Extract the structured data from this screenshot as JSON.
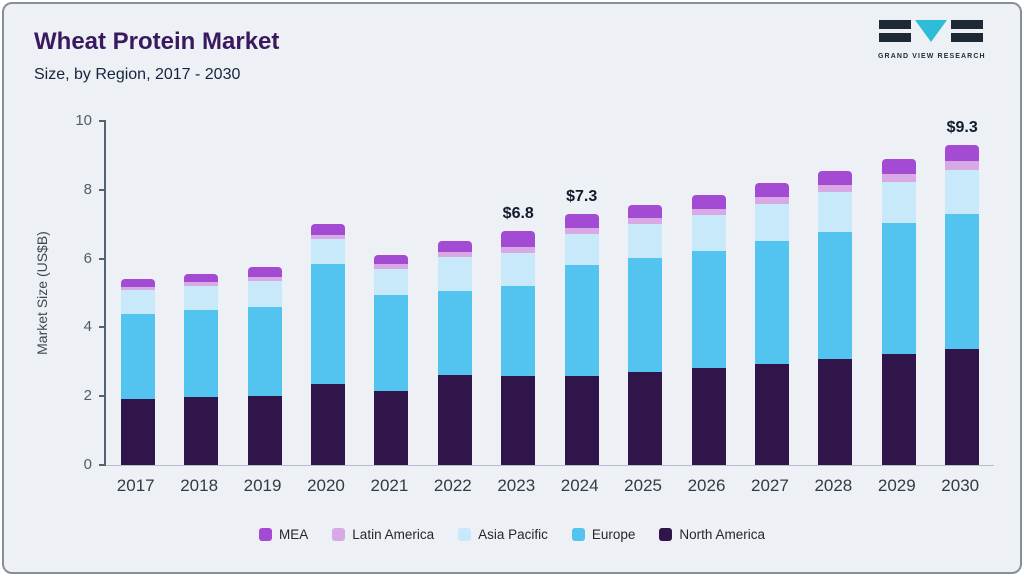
{
  "header": {
    "title": "Wheat Protein Market",
    "subtitle": "Size, by Region, 2017 - 2030"
  },
  "logo": {
    "name": "GRAND VIEW RESEARCH"
  },
  "chart_data": {
    "type": "bar",
    "stacked": true,
    "title": "Wheat Protein Market",
    "subtitle": "Size, by Region, 2017 - 2030",
    "ylabel": "Market Size (US$B)",
    "xlabel": "",
    "ylim": [
      0,
      10
    ],
    "yticks": [
      0,
      2,
      4,
      6,
      8,
      10
    ],
    "grid": false,
    "legend_position": "bottom",
    "categories": [
      "2017",
      "2018",
      "2019",
      "2020",
      "2021",
      "2022",
      "2023",
      "2024",
      "2025",
      "2026",
      "2027",
      "2028",
      "2029",
      "2030"
    ],
    "series": [
      {
        "name": "North America",
        "color": "#2f1549",
        "values": [
          1.92,
          1.97,
          2.02,
          2.35,
          2.15,
          2.62,
          2.6,
          2.58,
          2.7,
          2.83,
          2.95,
          3.08,
          3.22,
          3.38
        ]
      },
      {
        "name": "Europe",
        "color": "#53c4ef",
        "values": [
          2.48,
          2.53,
          2.58,
          3.5,
          2.8,
          2.43,
          2.6,
          3.22,
          3.32,
          3.4,
          3.55,
          3.68,
          3.82,
          3.93
        ]
      },
      {
        "name": "Asia Pacific",
        "color": "#c7e9fa",
        "values": [
          0.68,
          0.7,
          0.75,
          0.71,
          0.75,
          1.0,
          0.95,
          0.93,
          0.98,
          1.04,
          1.1,
          1.17,
          1.19,
          1.28
        ]
      },
      {
        "name": "Latin America",
        "color": "#d9a9e6",
        "values": [
          0.1,
          0.11,
          0.12,
          0.14,
          0.13,
          0.15,
          0.2,
          0.17,
          0.17,
          0.18,
          0.18,
          0.2,
          0.22,
          0.25
        ]
      },
      {
        "name": "MEA",
        "color": "#a44bd3",
        "values": [
          0.22,
          0.24,
          0.28,
          0.3,
          0.27,
          0.3,
          0.45,
          0.4,
          0.38,
          0.4,
          0.42,
          0.42,
          0.45,
          0.46
        ]
      }
    ],
    "totals": [
      5.4,
      5.55,
      5.75,
      7.0,
      6.1,
      6.5,
      6.8,
      7.3,
      7.55,
      7.85,
      8.2,
      8.55,
      8.9,
      9.3
    ],
    "annotations": [
      {
        "category": "2023",
        "label": "$6.8"
      },
      {
        "category": "2024",
        "label": "$7.3"
      },
      {
        "category": "2030",
        "label": "$9.3"
      }
    ]
  }
}
